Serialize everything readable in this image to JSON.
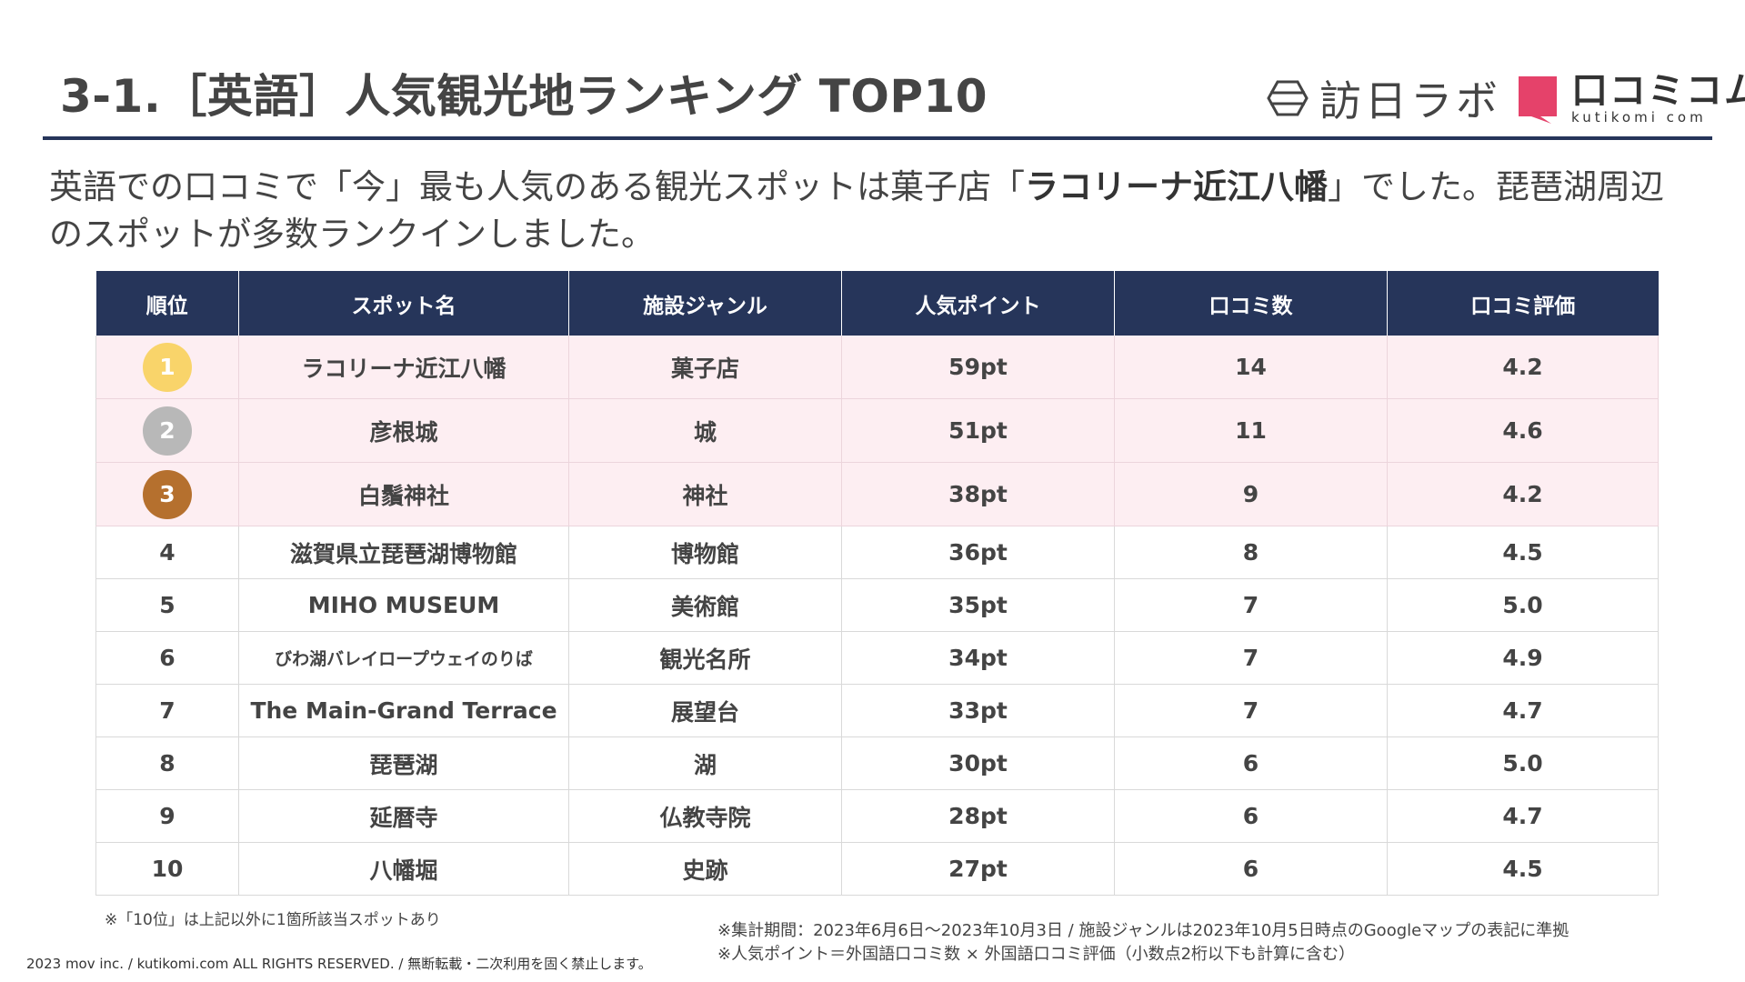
{
  "title": "3-1.［英語］人気観光地ランキング TOP10",
  "logos": {
    "hoji": {
      "text": "訪日ラボ",
      "icon": "hexagon-logo-icon"
    },
    "kutikomi": {
      "main": "口コミコム",
      "sub": "kutikomi com",
      "icon": "speech-bubble-logo-icon"
    }
  },
  "lead": {
    "part1": "英語での口コミで「今」最も人気のある観光スポットは菓子店「",
    "highlight": "ラコリーナ近江八幡",
    "part2": "」でした。琵琶湖周辺のスポットが多数ランクインしました。"
  },
  "table": {
    "headers": [
      "順位",
      "スポット名",
      "施設ジャンル",
      "人気ポイント",
      "口コミ数",
      "口コミ評価"
    ],
    "rows": [
      {
        "rank": "1",
        "name": "ラコリーナ近江八幡",
        "genre": "菓子店",
        "points": "59pt",
        "count": "14",
        "rating": "4.2",
        "medal": "#f9d46a"
      },
      {
        "rank": "2",
        "name": "彦根城",
        "genre": "城",
        "points": "51pt",
        "count": "11",
        "rating": "4.6",
        "medal": "#b8b8b8"
      },
      {
        "rank": "3",
        "name": "白鬚神社",
        "genre": "神社",
        "points": "38pt",
        "count": "9",
        "rating": "4.2",
        "medal": "#b5702e"
      },
      {
        "rank": "4",
        "name": "滋賀県立琵琶湖博物館",
        "genre": "博物館",
        "points": "36pt",
        "count": "8",
        "rating": "4.5"
      },
      {
        "rank": "5",
        "name": "MIHO MUSEUM",
        "genre": "美術館",
        "points": "35pt",
        "count": "7",
        "rating": "5.0"
      },
      {
        "rank": "6",
        "name": "びわ湖バレイロープウェイのりば",
        "genre": "観光名所",
        "points": "34pt",
        "count": "7",
        "rating": "4.9"
      },
      {
        "rank": "7",
        "name": "The Main-Grand Terrace",
        "genre": "展望台",
        "points": "33pt",
        "count": "7",
        "rating": "4.7"
      },
      {
        "rank": "8",
        "name": "琵琶湖",
        "genre": "湖",
        "points": "30pt",
        "count": "6",
        "rating": "5.0"
      },
      {
        "rank": "9",
        "name": "延暦寺",
        "genre": "仏教寺院",
        "points": "28pt",
        "count": "6",
        "rating": "4.7"
      },
      {
        "rank": "10",
        "name": "八幡堀",
        "genre": "史跡",
        "points": "27pt",
        "count": "6",
        "rating": "4.5"
      }
    ]
  },
  "notes": {
    "rank_note": "※「10位」は上記以外に1箇所該当スポットあり",
    "period": "※集計期間：2023年6月6日～2023年10月3日 / 施設ジャンルは2023年10月5日時点のGoogleマップの表記に準拠",
    "formula": "※人気ポイント＝外国語口コミ数 × 外国語口コミ評価（小数点2桁以下も計算に含む）"
  },
  "copyright": "2023 mov inc. / kutikomi.com ALL RIGHTS RESERVED. / 無断転載・二次利用を固く禁止します。",
  "colors": {
    "header": "#26355a",
    "highlight_row": "#fdeef2",
    "kutikomi_pink": "#e5426a"
  }
}
